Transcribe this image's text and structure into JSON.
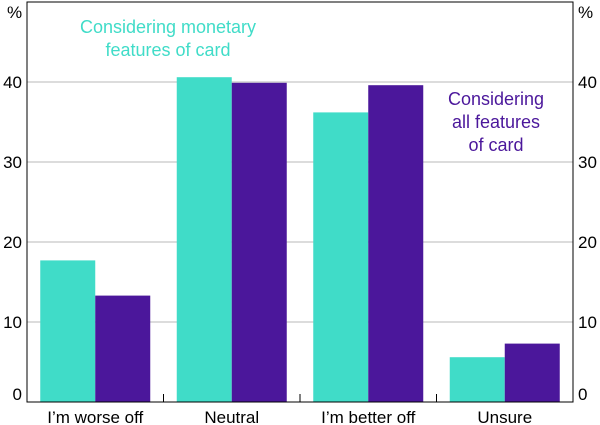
{
  "chart_data": {
    "type": "bar",
    "categories": [
      "I’m worse off",
      "Neutral",
      "I’m better off",
      "Unsure"
    ],
    "series": [
      {
        "name": "Considering monetary features of card",
        "label_lines": [
          "Considering monetary",
          "features of card"
        ],
        "color": "#40dcc8",
        "values": [
          17.7,
          40.6,
          36.2,
          5.6
        ]
      },
      {
        "name": "Considering all features of card",
        "label_lines": [
          "Considering",
          "all features",
          "of card"
        ],
        "color": "#4b179b",
        "values": [
          13.3,
          39.9,
          39.6,
          7.3
        ]
      }
    ],
    "y_unit_left": "%",
    "y_unit_right": "%",
    "ylim": [
      0,
      50
    ],
    "yticks": [
      0,
      10,
      20,
      30,
      40
    ],
    "grid": true,
    "legend": "inline labels (top-left and top-right)"
  }
}
